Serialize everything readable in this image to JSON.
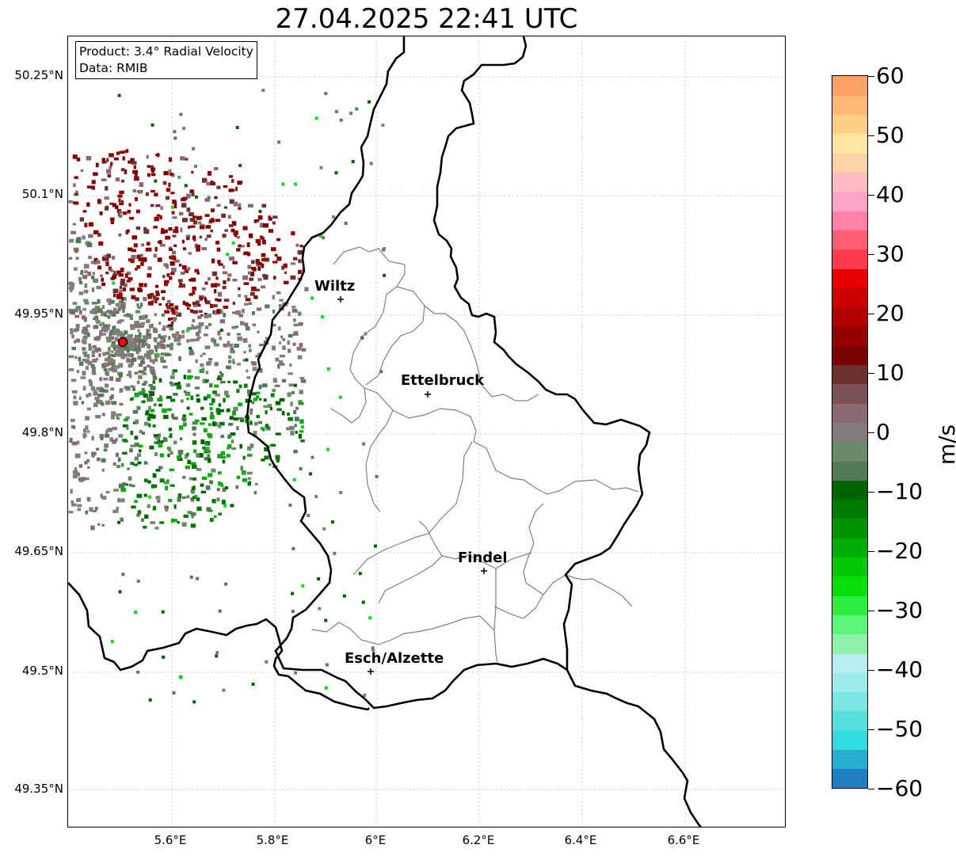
{
  "title": "27.04.2025 22:41 UTC",
  "info": {
    "product": "Product: 3.4° Radial Velocity",
    "data": "Data: RMIB"
  },
  "lat_ticks": [
    "50.25°N",
    "50.1°N",
    "49.95°N",
    "49.8°N",
    "49.65°N",
    "49.5°N",
    "49.35°N"
  ],
  "lon_ticks": [
    "5.6°E",
    "5.8°E",
    "6°E",
    "6.2°E",
    "6.4°E",
    "6.6°E"
  ],
  "cities": [
    {
      "name": "Wiltz"
    },
    {
      "name": "Ettelbruck"
    },
    {
      "name": "Findel"
    },
    {
      "name": "Esch/Alzette"
    }
  ],
  "colorbar": {
    "unit": "m/s",
    "tick_labels": [
      "60",
      "50",
      "40",
      "30",
      "20",
      "10",
      "0",
      "−10",
      "−20",
      "−30",
      "−40",
      "−50",
      "−60"
    ],
    "range": [
      -60,
      60
    ],
    "colors": [
      "#1f7fc4",
      "#27aed0",
      "#2fdde0",
      "#55e0e0",
      "#7ae6e6",
      "#9ee9ea",
      "#b9eef0",
      "#8ff2a8",
      "#5ff57a",
      "#2bef3c",
      "#05e00a",
      "#03c707",
      "#02ad05",
      "#029303",
      "#017a02",
      "#006400",
      "#537a57",
      "#6b8a6c",
      "#857a7c",
      "#8a6a72",
      "#7d4f56",
      "#6d3030",
      "#7a0000",
      "#960000",
      "#b20000",
      "#cc0000",
      "#e80000",
      "#ff3b4d",
      "#ff5f73",
      "#ff82a6",
      "#ffa3c8",
      "#ffbcc0",
      "#ffd2a8",
      "#ffe6a0",
      "#ffcf88",
      "#ffb878",
      "#ffa068"
    ]
  },
  "markers": {
    "radar_color": "#ff0000"
  }
}
